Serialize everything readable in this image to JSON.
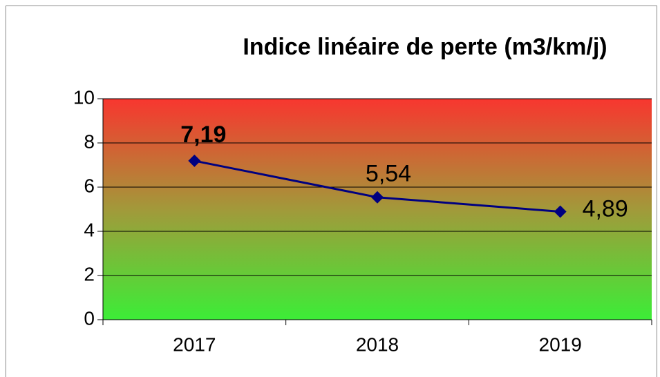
{
  "chart_data": {
    "type": "line",
    "title": "Indice linéaire de perte (m3/km/j)",
    "categories": [
      "2017",
      "2018",
      "2019"
    ],
    "values": [
      7.19,
      5.54,
      4.89
    ],
    "value_labels": [
      "7,19",
      "5,54",
      "4,89"
    ],
    "color": "#000080",
    "ylim": [
      0,
      10
    ],
    "yticks": [
      0,
      2,
      4,
      6,
      8,
      10
    ],
    "grid": true
  }
}
